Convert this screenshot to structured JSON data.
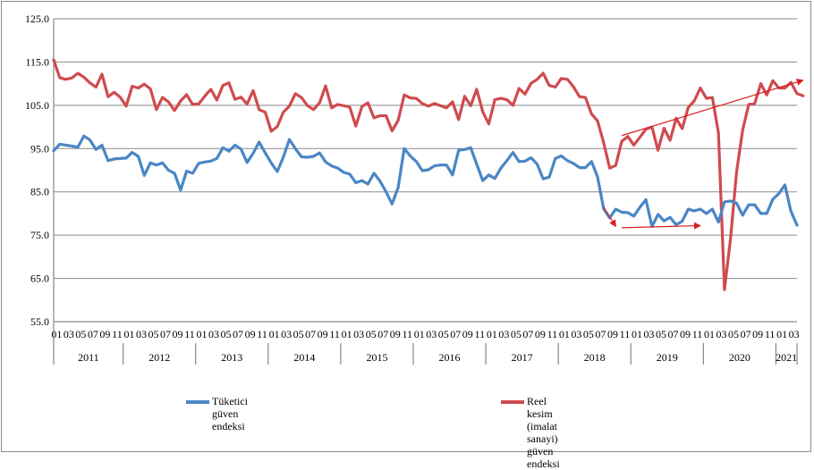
{
  "chart_data": {
    "type": "line",
    "title": "",
    "xlabel": "",
    "ylabel": "",
    "ylim": [
      55.0,
      125.0
    ],
    "y_ticks": [
      "55.0",
      "65.0",
      "75.0",
      "85.0",
      "95.0",
      "105.0",
      "115.0",
      "125.0"
    ],
    "grid": "horizontal",
    "legend_position": "bottom",
    "month_tick_labels": [
      "01",
      "03",
      "05",
      "07",
      "09",
      "11"
    ],
    "years": [
      "2011",
      "2012",
      "2013",
      "2014",
      "2015",
      "2016",
      "2017",
      "2018",
      "2019",
      "2020",
      "2021"
    ],
    "x_start": "2011-01",
    "x_end": "2021-05",
    "series": [
      {
        "name": "Tüketici güven endeksi",
        "color": "#4a86c5",
        "values": [
          94.5,
          96.0,
          95.8,
          95.6,
          95.3,
          97.9,
          97.0,
          94.8,
          95.8,
          92.2,
          92.6,
          92.7,
          92.8,
          94.1,
          93.2,
          88.8,
          91.7,
          91.2,
          91.7,
          90.0,
          89.3,
          85.4,
          89.8,
          89.3,
          91.6,
          91.9,
          92.1,
          92.7,
          95.2,
          94.4,
          95.8,
          94.9,
          91.8,
          93.9,
          96.5,
          94.0,
          91.7,
          89.7,
          93.0,
          97.1,
          95.0,
          93.1,
          93.0,
          93.2,
          94.0,
          91.9,
          91.0,
          90.5,
          89.5,
          89.1,
          87.1,
          87.6,
          86.8,
          89.3,
          87.5,
          85.0,
          82.2,
          86.0,
          95.0,
          93.3,
          92.0,
          89.9,
          90.1,
          91.0,
          91.2,
          91.2,
          88.9,
          94.6,
          94.8,
          95.2,
          91.4,
          87.6,
          88.9,
          88.1,
          90.5,
          92.2,
          94.1,
          92.0,
          92.1,
          92.9,
          91.4,
          88.0,
          88.4,
          92.7,
          93.3,
          92.2,
          91.6,
          90.6,
          90.6,
          92.0,
          88.5,
          81.1,
          79.0,
          81.0,
          80.3,
          80.2,
          79.4,
          81.4,
          83.2,
          77.0,
          79.8,
          78.3,
          79.1,
          77.4,
          78.2,
          81.0,
          80.6,
          81.0,
          80.0,
          81.0,
          78.0,
          82.7,
          82.9,
          82.4,
          79.6,
          82.0,
          82.0,
          80.0,
          80.0,
          83.3,
          84.6,
          86.6,
          80.5,
          77.3
        ]
      },
      {
        "name": "Reel kesim (imalat sanayi) güven endeksi",
        "color": "#cf4b4f",
        "values": [
          115.5,
          111.4,
          111.0,
          111.3,
          112.4,
          111.5,
          110.2,
          109.2,
          112.2,
          107.0,
          108.0,
          106.9,
          104.8,
          109.4,
          109.0,
          109.9,
          108.8,
          104.0,
          106.8,
          105.8,
          103.8,
          106.0,
          107.5,
          105.2,
          105.3,
          107.1,
          108.7,
          106.2,
          109.6,
          110.2,
          106.4,
          106.9,
          105.3,
          108.4,
          104.0,
          103.4,
          99.0,
          100.1,
          103.4,
          104.8,
          107.7,
          106.8,
          104.9,
          104.0,
          105.6,
          109.5,
          104.4,
          105.2,
          104.9,
          104.6,
          100.2,
          104.7,
          105.6,
          102.1,
          102.6,
          102.6,
          99.1,
          101.5,
          107.4,
          106.7,
          106.6,
          105.4,
          104.8,
          105.4,
          104.9,
          104.4,
          105.8,
          101.7,
          107.1,
          104.9,
          108.7,
          103.5,
          100.7,
          106.3,
          106.6,
          106.3,
          105.0,
          108.9,
          107.6,
          110.1,
          111.0,
          112.4,
          109.6,
          109.2,
          111.2,
          111.0,
          109.3,
          107.0,
          106.8,
          103.0,
          101.4,
          96.4,
          90.5,
          91.1,
          96.7,
          97.8,
          95.8,
          97.6,
          99.5,
          100.0,
          94.6,
          99.7,
          96.9,
          102.0,
          99.6,
          104.5,
          106.0,
          109.0,
          106.6,
          106.8,
          98.6,
          62.4,
          74.2,
          89.5,
          99.2,
          105.2,
          105.4,
          110.0,
          107.4,
          110.7,
          109.0,
          109.0,
          110.3,
          107.7,
          107.2
        ]
      }
    ],
    "annotations": [
      {
        "type": "arrow",
        "from": [
          "2018-11",
          98.0
        ],
        "to": [
          "2021-05",
          110.8
        ]
      },
      {
        "type": "arrow",
        "from": [
          "2018-08",
          81.5
        ],
        "to": [
          "2018-10",
          77.0
        ]
      },
      {
        "type": "arrow",
        "from": [
          "2018-11",
          76.7
        ],
        "to": [
          "2019-12",
          77.2
        ]
      }
    ]
  },
  "legend": {
    "series1_label": "Tüketici güven endeksi",
    "series2_label": "Reel\nkesim (imalat sanayi)\ngüven\nendeksi"
  }
}
